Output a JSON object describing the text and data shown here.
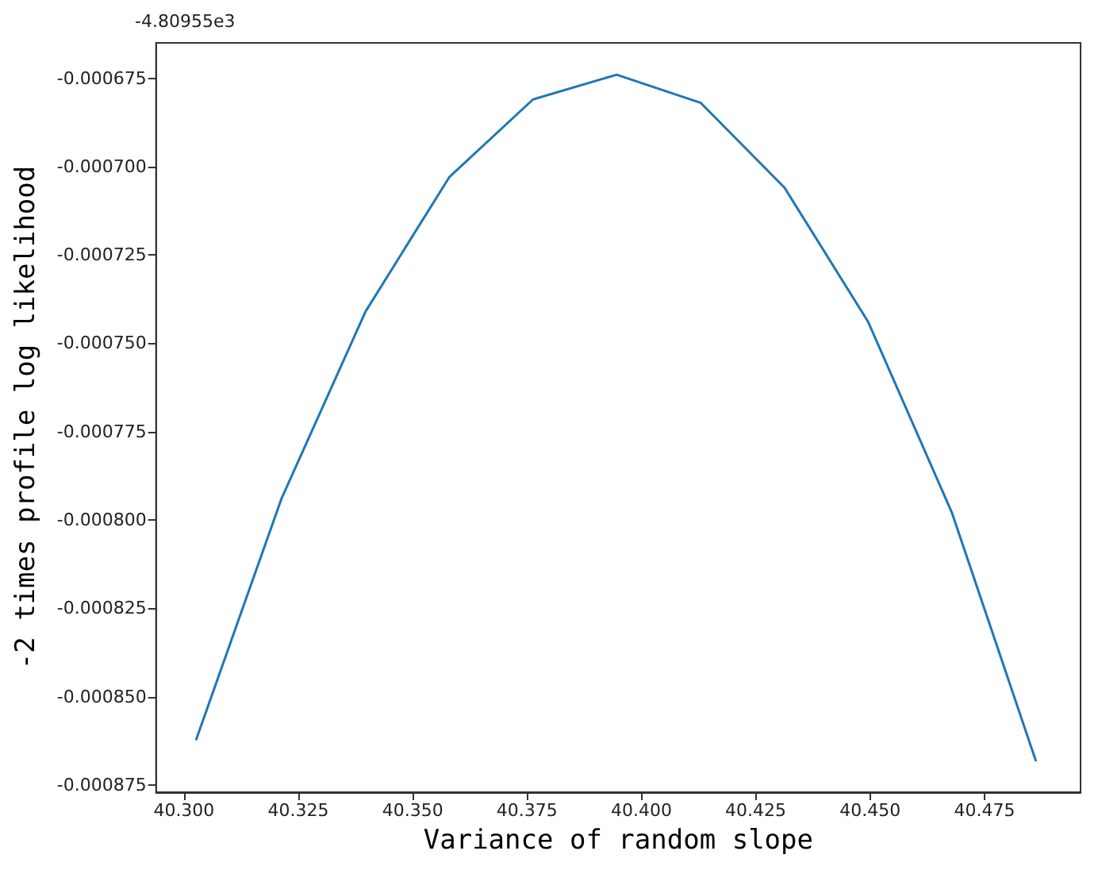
{
  "chart_data": {
    "type": "line",
    "xlabel": "Variance of random slope",
    "ylabel": "-2 times profile log likelihood",
    "annotations": [
      "-4.80955e3"
    ],
    "series": [
      {
        "color": "#1f77b4",
        "x": [
          40.3027,
          40.3213,
          40.3397,
          40.358,
          40.3763,
          40.3946,
          40.413,
          40.4313,
          40.4496,
          40.4679,
          40.4862
        ],
        "values": [
          -0.000862,
          -0.000794,
          -0.000741,
          -0.000703,
          -0.000681,
          -0.000674,
          -0.000682,
          -0.000706,
          -0.000744,
          -0.000798,
          -0.000868
        ]
      }
    ],
    "xlim": [
      40.2939,
      40.496
    ],
    "xticks": [
      {
        "value": 40.3,
        "label": "40.300"
      },
      {
        "value": 40.325,
        "label": "40.325"
      },
      {
        "value": 40.35,
        "label": "40.350"
      },
      {
        "value": 40.375,
        "label": "40.375"
      },
      {
        "value": 40.4,
        "label": "40.400"
      },
      {
        "value": 40.425,
        "label": "40.425"
      },
      {
        "value": 40.45,
        "label": "40.450"
      },
      {
        "value": 40.475,
        "label": "40.475"
      }
    ],
    "ylim": [
      -0.000877,
      -0.000665
    ],
    "yticks": [
      {
        "value": -0.000875,
        "label": "-0.000875"
      },
      {
        "value": -0.00085,
        "label": "-0.000850"
      },
      {
        "value": -0.000825,
        "label": "-0.000825"
      },
      {
        "value": -0.0008,
        "label": "-0.000800"
      },
      {
        "value": -0.000775,
        "label": "-0.000775"
      },
      {
        "value": -0.00075,
        "label": "-0.000750"
      },
      {
        "value": -0.000725,
        "label": "-0.000725"
      },
      {
        "value": -0.0007,
        "label": "-0.000700"
      },
      {
        "value": -0.000675,
        "label": "-0.000675"
      }
    ],
    "grid": false,
    "marker": "none",
    "line_style": "solid"
  }
}
